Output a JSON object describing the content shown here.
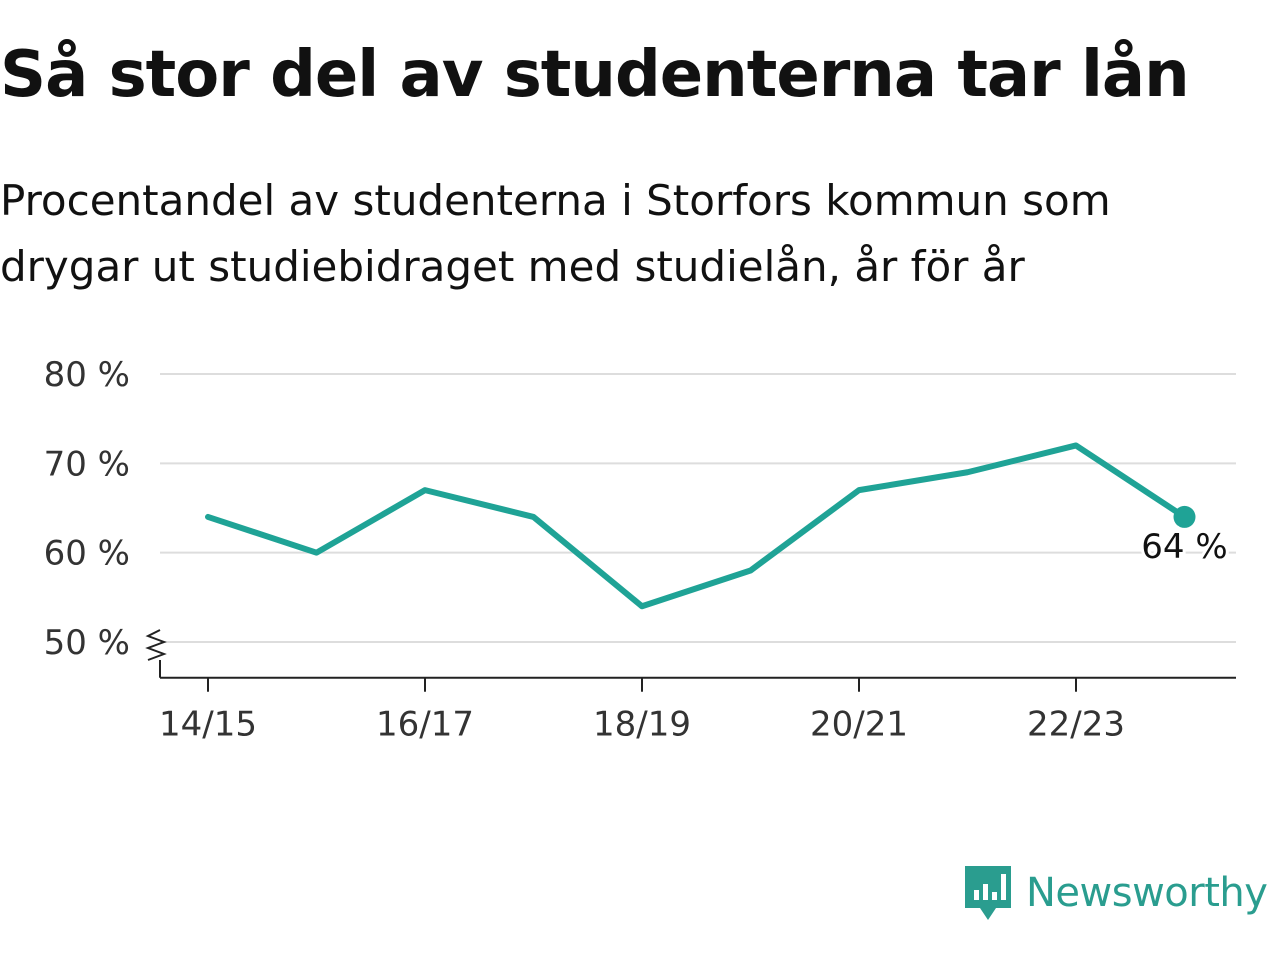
{
  "title": "Så stor del av studenterna tar lån",
  "subtitle": "Procentandel av studenterna i Storfors kommun som drygar ut studiebidraget med studielån, år för år",
  "brand": {
    "name": "Newsworthy",
    "color": "#2a9d8f",
    "icon": "newsworthy-logo-icon"
  },
  "chart_data": {
    "type": "line",
    "x": [
      "14/15",
      "15/16",
      "16/17",
      "17/18",
      "18/19",
      "19/20",
      "20/21",
      "21/22",
      "22/23",
      "23/24"
    ],
    "x_tick_labels": [
      "14/15",
      "16/17",
      "18/19",
      "20/21",
      "22/23"
    ],
    "series": [
      {
        "values": [
          64,
          60,
          67,
          64,
          54,
          58,
          67,
          69,
          72,
          64
        ],
        "color": "#1fa396"
      }
    ],
    "y_ticks": [
      50,
      60,
      70,
      80
    ],
    "y_tick_labels": [
      "50 %",
      "60 %",
      "70 %",
      "80 %"
    ],
    "ylim": [
      46,
      80
    ],
    "y_axis_break": true,
    "grid": true,
    "last_value_label": "64 %",
    "xlabel": "",
    "ylabel": ""
  }
}
